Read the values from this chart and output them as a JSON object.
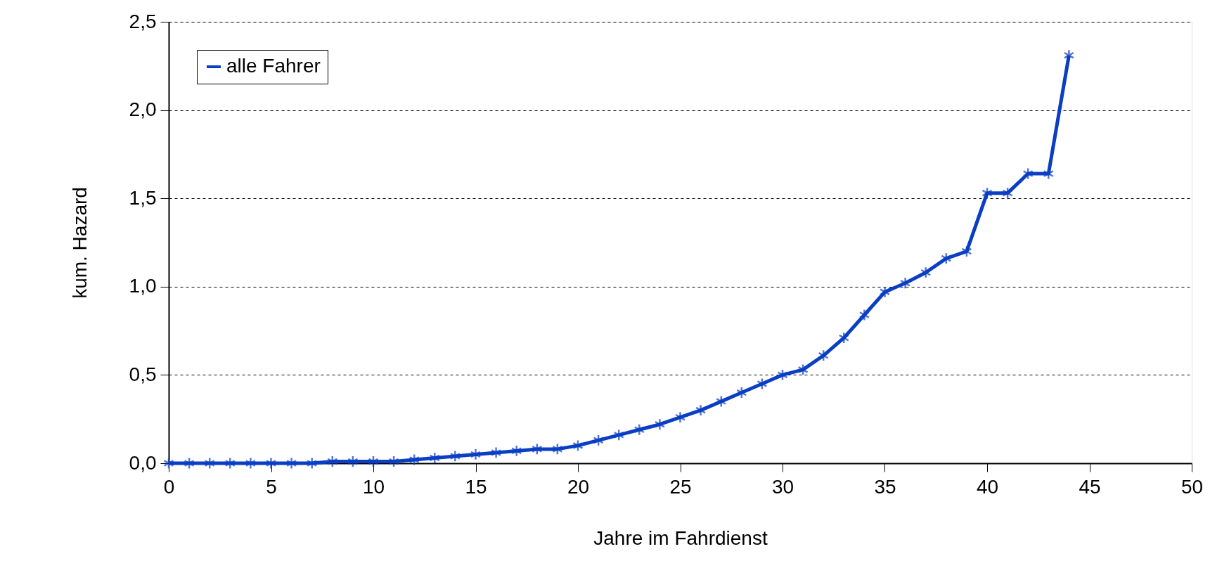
{
  "chart_data": {
    "type": "line",
    "xlabel": "Jahre im Fahrdienst",
    "ylabel": "kum. Hazard",
    "x": [
      0,
      1,
      2,
      3,
      4,
      5,
      6,
      7,
      8,
      9,
      10,
      11,
      12,
      13,
      14,
      15,
      16,
      17,
      18,
      19,
      20,
      21,
      22,
      23,
      24,
      25,
      26,
      27,
      28,
      29,
      30,
      31,
      32,
      33,
      34,
      35,
      36,
      37,
      38,
      39,
      40,
      41,
      42,
      43,
      44
    ],
    "series": [
      {
        "name": "alle Fahrer",
        "color": "#0a3fc4",
        "values": [
          0,
          0,
          0,
          0,
          0,
          0,
          0,
          0,
          0.01,
          0.01,
          0.01,
          0.01,
          0.02,
          0.03,
          0.04,
          0.05,
          0.06,
          0.07,
          0.08,
          0.08,
          0.1,
          0.13,
          0.16,
          0.19,
          0.22,
          0.26,
          0.3,
          0.35,
          0.4,
          0.45,
          0.5,
          0.53,
          0.61,
          0.71,
          0.84,
          0.97,
          1.02,
          1.08,
          1.16,
          1.2,
          1.53,
          1.53,
          1.64,
          1.64,
          2.31
        ]
      }
    ],
    "xlim": [
      0,
      50
    ],
    "xticks": [
      0,
      5,
      10,
      15,
      20,
      25,
      30,
      35,
      40,
      45,
      50
    ],
    "ylim": [
      0,
      2.5
    ],
    "yticks": [
      {
        "value": 0,
        "label": "0,0"
      },
      {
        "value": 0.5,
        "label": "0,5"
      },
      {
        "value": 1,
        "label": "1,0"
      },
      {
        "value": 1.5,
        "label": "1,5"
      },
      {
        "value": 2,
        "label": "2,0"
      },
      {
        "value": 2.5,
        "label": "2,5"
      }
    ],
    "grid": "y",
    "legend": "top left",
    "marker": "cross",
    "line_style": "solid"
  }
}
